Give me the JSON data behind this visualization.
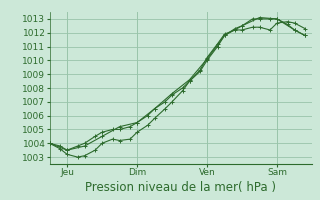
{
  "title": "",
  "xlabel": "Pression niveau de la mer( hPa )",
  "ylabel": "",
  "bg_color": "#cce8d8",
  "grid_color": "#99c4aa",
  "line_color": "#2d6b2d",
  "ylim": [
    1002.5,
    1013.5
  ],
  "yticks": [
    1003,
    1004,
    1005,
    1006,
    1007,
    1008,
    1009,
    1010,
    1011,
    1012,
    1013
  ],
  "day_positions": [
    0.5,
    2.5,
    4.5,
    6.5
  ],
  "day_labels": [
    "Jeu",
    "Dim",
    "Ven",
    "Sam"
  ],
  "vline_positions": [
    0.5,
    2.5,
    4.5,
    6.5
  ],
  "line1_x": [
    0.0,
    0.3,
    0.5,
    0.8,
    1.0,
    1.3,
    1.5,
    1.8,
    2.0,
    2.3,
    2.5,
    2.8,
    3.0,
    3.3,
    3.5,
    3.8,
    4.0,
    4.3,
    4.5,
    4.8,
    5.0,
    5.3,
    5.5,
    5.8,
    6.0,
    6.3,
    6.5,
    6.8,
    7.0,
    7.3
  ],
  "line1_y": [
    1004.0,
    1003.8,
    1003.5,
    1003.8,
    1004.0,
    1004.5,
    1004.8,
    1005.0,
    1005.0,
    1005.2,
    1005.5,
    1006.0,
    1006.5,
    1007.0,
    1007.5,
    1008.0,
    1008.5,
    1009.2,
    1010.0,
    1011.0,
    1011.8,
    1012.3,
    1012.5,
    1013.0,
    1013.0,
    1013.0,
    1013.0,
    1012.6,
    1012.2,
    1011.8
  ],
  "line2_x": [
    0.0,
    0.3,
    0.5,
    0.8,
    1.0,
    1.3,
    1.5,
    1.8,
    2.0,
    2.3,
    2.5,
    2.8,
    3.0,
    3.3,
    3.5,
    3.8,
    4.0,
    4.3,
    4.5,
    4.8,
    5.0,
    5.3,
    5.5,
    5.8,
    6.0,
    6.3,
    6.5,
    6.8,
    7.0,
    7.3
  ],
  "line2_y": [
    1004.0,
    1003.6,
    1003.2,
    1003.0,
    1003.1,
    1003.5,
    1004.0,
    1004.3,
    1004.2,
    1004.3,
    1004.8,
    1005.3,
    1005.8,
    1006.5,
    1007.0,
    1007.8,
    1008.5,
    1009.3,
    1010.2,
    1011.2,
    1011.9,
    1012.2,
    1012.2,
    1012.4,
    1012.4,
    1012.2,
    1012.7,
    1012.8,
    1012.7,
    1012.3
  ],
  "line3_x": [
    0.0,
    0.5,
    1.0,
    1.5,
    2.0,
    2.5,
    3.0,
    3.5,
    4.0,
    4.5,
    5.0,
    5.5,
    6.0,
    6.5,
    7.0,
    7.3
  ],
  "line3_y": [
    1004.0,
    1003.5,
    1003.8,
    1004.5,
    1005.2,
    1005.5,
    1006.5,
    1007.6,
    1008.6,
    1010.1,
    1011.8,
    1012.5,
    1013.1,
    1013.0,
    1012.2,
    1011.8
  ],
  "xlim": [
    0.0,
    7.5
  ],
  "marker_size": 3.0,
  "font_size_ticks": 6.5,
  "font_size_xlabel": 8.5
}
